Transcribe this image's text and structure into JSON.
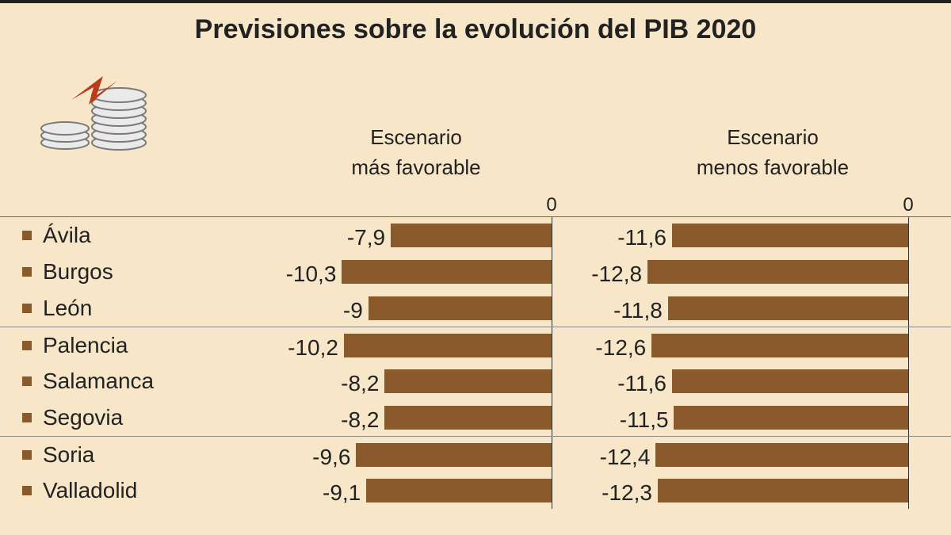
{
  "title": "Previsiones sobre la evolución del PIB 2020",
  "title_fontsize": 34,
  "background_color": "#f7e6c8",
  "bar_color": "#8b5a2b",
  "bullet_color": "#8b5a2b",
  "text_color": "#222222",
  "header_fontsize": 26,
  "zero_label": "0",
  "zero_fontsize": 24,
  "province_fontsize": 28,
  "value_fontsize": 28,
  "columns": [
    {
      "label_line1": "Escenario",
      "label_line2": "más favorable",
      "axis_min": -14,
      "axis_max": 0
    },
    {
      "label_line1": "Escenario",
      "label_line2": "menos favorable",
      "axis_min": -14,
      "axis_max": 0
    }
  ],
  "rows": [
    {
      "province": "Ávila",
      "values": [
        "-7,9",
        "-11,6"
      ],
      "raw": [
        -7.9,
        -11.6
      ],
      "group_divider": false
    },
    {
      "province": "Burgos",
      "values": [
        "-10,3",
        "-12,8"
      ],
      "raw": [
        -10.3,
        -12.8
      ],
      "group_divider": false
    },
    {
      "province": "León",
      "values": [
        "-9",
        "-11,8"
      ],
      "raw": [
        -9.0,
        -11.8
      ],
      "group_divider": false
    },
    {
      "province": "Palencia",
      "values": [
        "-10,2",
        "-12,6"
      ],
      "raw": [
        -10.2,
        -12.6
      ],
      "group_divider": true
    },
    {
      "province": "Salamanca",
      "values": [
        "-8,2",
        "-11,6"
      ],
      "raw": [
        -8.2,
        -11.6
      ],
      "group_divider": false
    },
    {
      "province": "Segovia",
      "values": [
        "-8,2",
        "-11,5"
      ],
      "raw": [
        -8.2,
        -11.5
      ],
      "group_divider": false
    },
    {
      "province": "Soria",
      "values": [
        "-9,6",
        "-12,4"
      ],
      "raw": [
        -9.6,
        -12.4
      ],
      "group_divider": true
    },
    {
      "province": "Valladolid",
      "values": [
        "-9,1",
        "-12,3"
      ],
      "raw": [
        -9.1,
        -12.3
      ],
      "group_divider": false
    }
  ],
  "icon": {
    "coin_stroke": "#7a7a7a",
    "coin_fill": "#eaeaea",
    "arrow_fill": "#b83b1a"
  },
  "chart_axis_left_gutter_pct": 8,
  "chart_axis_right_pct": 88
}
